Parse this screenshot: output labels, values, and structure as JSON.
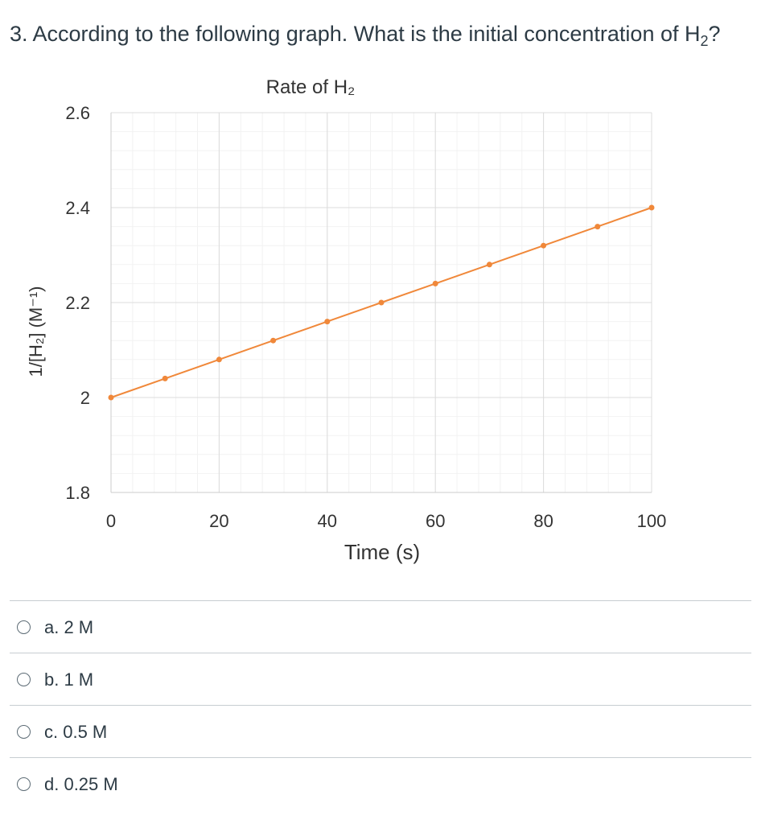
{
  "question": {
    "prefix": "3. According to the following graph. What is the initial concentration of H",
    "subscript": "2",
    "suffix": "?"
  },
  "chart_data": {
    "type": "line",
    "title": "Rate of H₂",
    "xlabel": "Time (s)",
    "ylabel": "1/[H₂] (M⁻¹)",
    "xlim": [
      0,
      100
    ],
    "ylim": [
      1.8,
      2.6
    ],
    "x_ticks": [
      "0",
      "20",
      "40",
      "60",
      "80",
      "100"
    ],
    "y_ticks": [
      "1.8",
      "2",
      "2.2",
      "2.4",
      "2.6"
    ],
    "grid": true,
    "series": [
      {
        "color": "#f0883a",
        "x": [
          0,
          10,
          20,
          30,
          40,
          50,
          60,
          70,
          80,
          90,
          100
        ],
        "y": [
          2.0,
          2.04,
          2.08,
          2.12,
          2.16,
          2.2,
          2.24,
          2.28,
          2.32,
          2.36,
          2.4
        ]
      }
    ]
  },
  "answers": [
    {
      "label": "a. 2 M"
    },
    {
      "label": "b. 1 M"
    },
    {
      "label": "c. 0.5 M"
    },
    {
      "label": "d. 0.25 M"
    }
  ]
}
